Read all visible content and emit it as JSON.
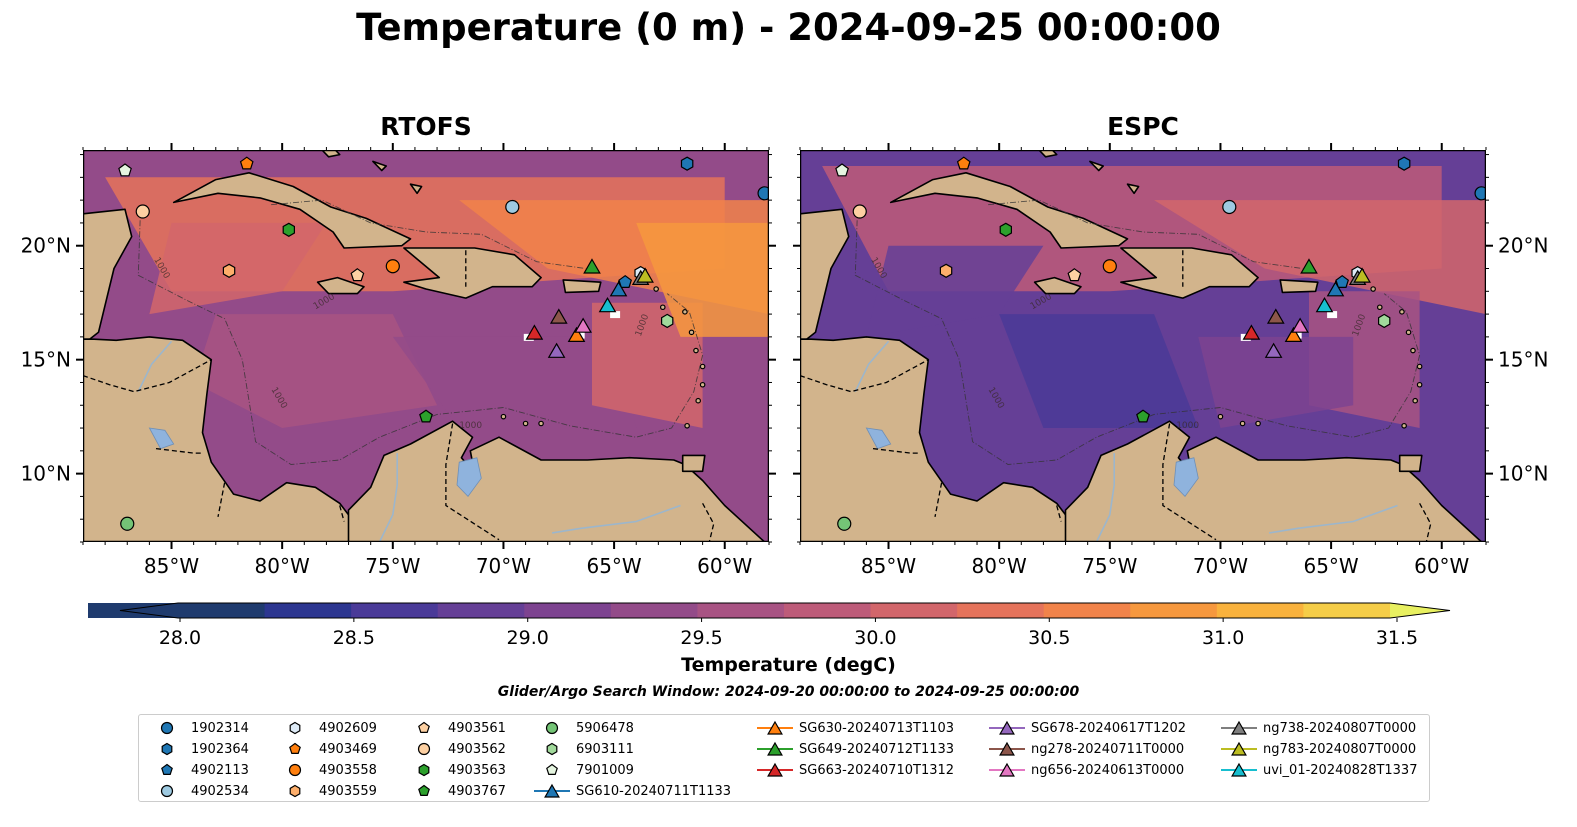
{
  "figure": {
    "title": "Temperature (0 m) - 2024-09-25 00:00:00",
    "colorbar_label": "Temperature (degC)",
    "search_window": "Glider/Argo Search Window: 2024-09-20 00:00:00 to 2024-09-25 00:00:00"
  },
  "chart_data": {
    "type": "heatmap",
    "panels": [
      "RTOFS",
      "ESPC"
    ],
    "x_ticks": [
      "85°W",
      "80°W",
      "75°W",
      "70°W",
      "65°W",
      "60°W"
    ],
    "x_tick_values": [
      -85,
      -80,
      -75,
      -70,
      -65,
      -60
    ],
    "y_ticks": [
      "20°N",
      "15°N",
      "10°N"
    ],
    "y_tick_values": [
      20,
      15,
      10
    ],
    "xlim": [
      -89,
      -58
    ],
    "ylim": [
      7,
      24.2
    ],
    "colorbar": {
      "ticks": [
        "28.0",
        "28.5",
        "29.0",
        "29.5",
        "30.0",
        "30.5",
        "31.0",
        "31.5"
      ],
      "range": [
        28.0,
        31.5
      ],
      "step": 0.25,
      "colors": [
        "#102a44",
        "#1f3b6e",
        "#2c3690",
        "#4a3a98",
        "#653f96",
        "#7d4390",
        "#934b89",
        "#a85383",
        "#bd5b79",
        "#d2666b",
        "#e5735b",
        "#f1834a",
        "#f6983e",
        "#f9b23d",
        "#f5cd48",
        "#e8f060"
      ]
    },
    "contour_label": "1000",
    "colors": {
      "land": "#d2b48c",
      "lake": "#8fb3dd",
      "river": "#9cb6cc"
    },
    "argo_floats": [
      {
        "id": "1902314",
        "marker": "circle",
        "color": "#1f77b4",
        "lon": -58.2,
        "lat": 22.3
      },
      {
        "id": "1902364",
        "marker": "hexagon",
        "color": "#1f77b4",
        "lon": -61.7,
        "lat": 23.6
      },
      {
        "id": "4902113",
        "marker": "pentagon",
        "color": "#1f77b4",
        "lon": -64.5,
        "lat": 18.4
      },
      {
        "id": "4902534",
        "marker": "circle",
        "color": "#9ecae1",
        "lon": -69.6,
        "lat": 21.7
      },
      {
        "id": "4902609",
        "marker": "hexagon",
        "color": "#deebf7",
        "lon": -63.8,
        "lat": 18.8
      },
      {
        "id": "4903469",
        "marker": "pentagon",
        "color": "#ff7f0e",
        "lon": -81.6,
        "lat": 23.6
      },
      {
        "id": "4903558",
        "marker": "circle",
        "color": "#ff7f0e",
        "lon": -75.0,
        "lat": 19.1
      },
      {
        "id": "4903559",
        "marker": "hexagon",
        "color": "#fdae6b",
        "lon": -82.4,
        "lat": 18.9
      },
      {
        "id": "4903561",
        "marker": "pentagon",
        "color": "#fdd0a2",
        "lon": -76.6,
        "lat": 18.7
      },
      {
        "id": "4903562",
        "marker": "circle",
        "color": "#fdd0a2",
        "lon": -86.3,
        "lat": 21.5
      },
      {
        "id": "4903563",
        "marker": "hexagon",
        "color": "#2ca02c",
        "lon": -79.7,
        "lat": 20.7
      },
      {
        "id": "4903767",
        "marker": "pentagon",
        "color": "#2ca02c",
        "lon": -73.5,
        "lat": 12.5
      },
      {
        "id": "5906478",
        "marker": "circle",
        "color": "#74c476",
        "lon": -87.0,
        "lat": 7.8
      },
      {
        "id": "6903111",
        "marker": "hexagon",
        "color": "#a1d99b",
        "lon": -62.6,
        "lat": 16.7
      },
      {
        "id": "7901009",
        "marker": "pentagon",
        "color": "#e5f5e0",
        "lon": -87.1,
        "lat": 23.3
      }
    ],
    "gliders": [
      {
        "id": "SG610-20240711T1133",
        "color": "#1f77b4",
        "lon": -64.8,
        "lat": 18.1
      },
      {
        "id": "SG630-20240713T1103",
        "color": "#ff7f0e",
        "lon": -66.7,
        "lat": 16.1
      },
      {
        "id": "SG649-20240712T1133",
        "color": "#2ca02c",
        "lon": -66.0,
        "lat": 19.1
      },
      {
        "id": "SG663-20240710T1312",
        "color": "#d62728",
        "lon": -68.6,
        "lat": 16.2
      },
      {
        "id": "SG678-20240617T1202",
        "color": "#9467bd",
        "lon": -67.6,
        "lat": 15.4
      },
      {
        "id": "ng278-20240711T0000",
        "color": "#8c564b",
        "lon": -67.5,
        "lat": 16.9
      },
      {
        "id": "ng656-20240613T0000",
        "color": "#e377c2",
        "lon": -66.4,
        "lat": 16.5
      },
      {
        "id": "ng738-20240807T0000",
        "color": "#7f7f7f",
        "lon": -63.8,
        "lat": 18.6
      },
      {
        "id": "ng783-20240807T0000",
        "color": "#bcbd22",
        "lon": -63.6,
        "lat": 18.7
      },
      {
        "id": "uvi_01-20240828T1337",
        "color": "#17becf",
        "lon": -65.3,
        "lat": 17.4
      }
    ]
  }
}
